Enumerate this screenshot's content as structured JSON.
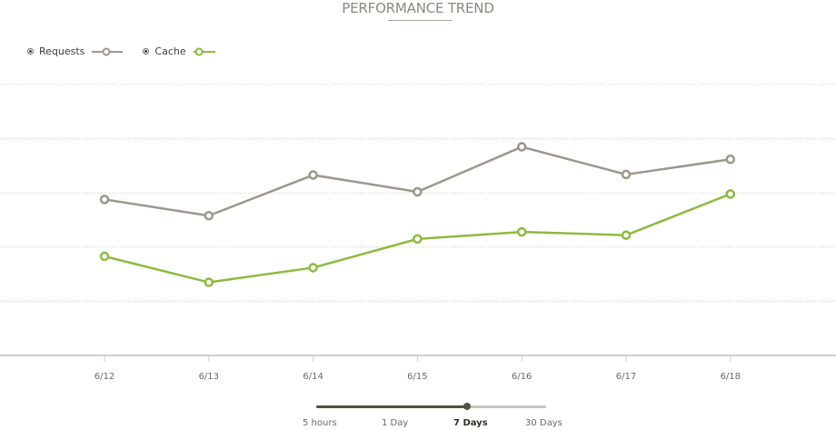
{
  "title": "PERFORMANCE TREND",
  "legend": [
    {
      "label": "Requests",
      "color": "#9b978a"
    },
    {
      "label": "Cache",
      "color": "#8bbb3f"
    }
  ],
  "range_selector": {
    "options": [
      "5 hours",
      "1 Day",
      "7 Days",
      "30 Days"
    ],
    "selected": "7 Days"
  },
  "chart_data": {
    "type": "line",
    "title": "PERFORMANCE TREND",
    "x": [
      "6/12",
      "6/13",
      "6/14",
      "6/15",
      "6/16",
      "6/17",
      "6/18"
    ],
    "ylim": [
      0,
      5
    ],
    "grid": true,
    "legend_position": "top-left",
    "series": [
      {
        "name": "Requests",
        "color": "#9b978a",
        "values": [
          2.88,
          2.58,
          3.33,
          3.02,
          3.85,
          3.34,
          3.62
        ]
      },
      {
        "name": "Cache",
        "color": "#8bbb3f",
        "values": [
          1.83,
          1.35,
          1.62,
          2.15,
          2.28,
          2.22,
          2.98
        ]
      }
    ]
  }
}
